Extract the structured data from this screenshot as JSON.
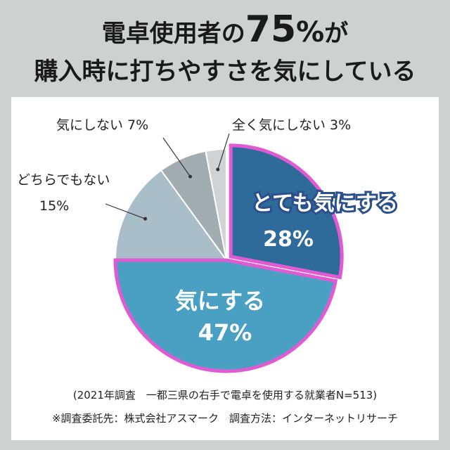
{
  "title": {
    "line1_prefix": "電卓使用者の",
    "line1_number": "75",
    "line1_pct": "%",
    "line1_suffix": "が",
    "line2": "購入時に打ちやすさを気にしている"
  },
  "chart_data": {
    "type": "pie",
    "title": "電卓使用者の75%が購入時に打ちやすさを気にしている",
    "slices": [
      {
        "label": "とても気にする",
        "value": 28,
        "value_label": "28%",
        "color": "#2f6b9a"
      },
      {
        "label": "気にする",
        "value": 47,
        "value_label": "47%",
        "color": "#4aa0c2"
      },
      {
        "label": "どちらでもない",
        "value": 15,
        "value_label": "15%",
        "color": "#a9bec9"
      },
      {
        "label": "気にしない",
        "value": 7,
        "value_label": "7%",
        "color": "#a2adb2"
      },
      {
        "label": "全く気にしない",
        "value": 3,
        "value_label": "3%",
        "color": "#cfd3d5"
      }
    ],
    "highlight_color": "#e05bd3",
    "highlight_note": "とても気にする + 気にする = 75%"
  },
  "labels": {
    "very_care": "とても気にする",
    "very_care_value": "28%",
    "care": "気にする",
    "care_value": "47%",
    "neutral": "どちらでもない",
    "neutral_value": "15%",
    "not_care": "気にしない 7%",
    "not_care_at_all": "全く気にしない 3%"
  },
  "notes": {
    "survey": "(2021年調査　一都三県の右手で電卓を使用する就業者N=513)",
    "source": "※調査委託先：株式会社アスマーク　調査方法：インターネットリサーチ"
  }
}
